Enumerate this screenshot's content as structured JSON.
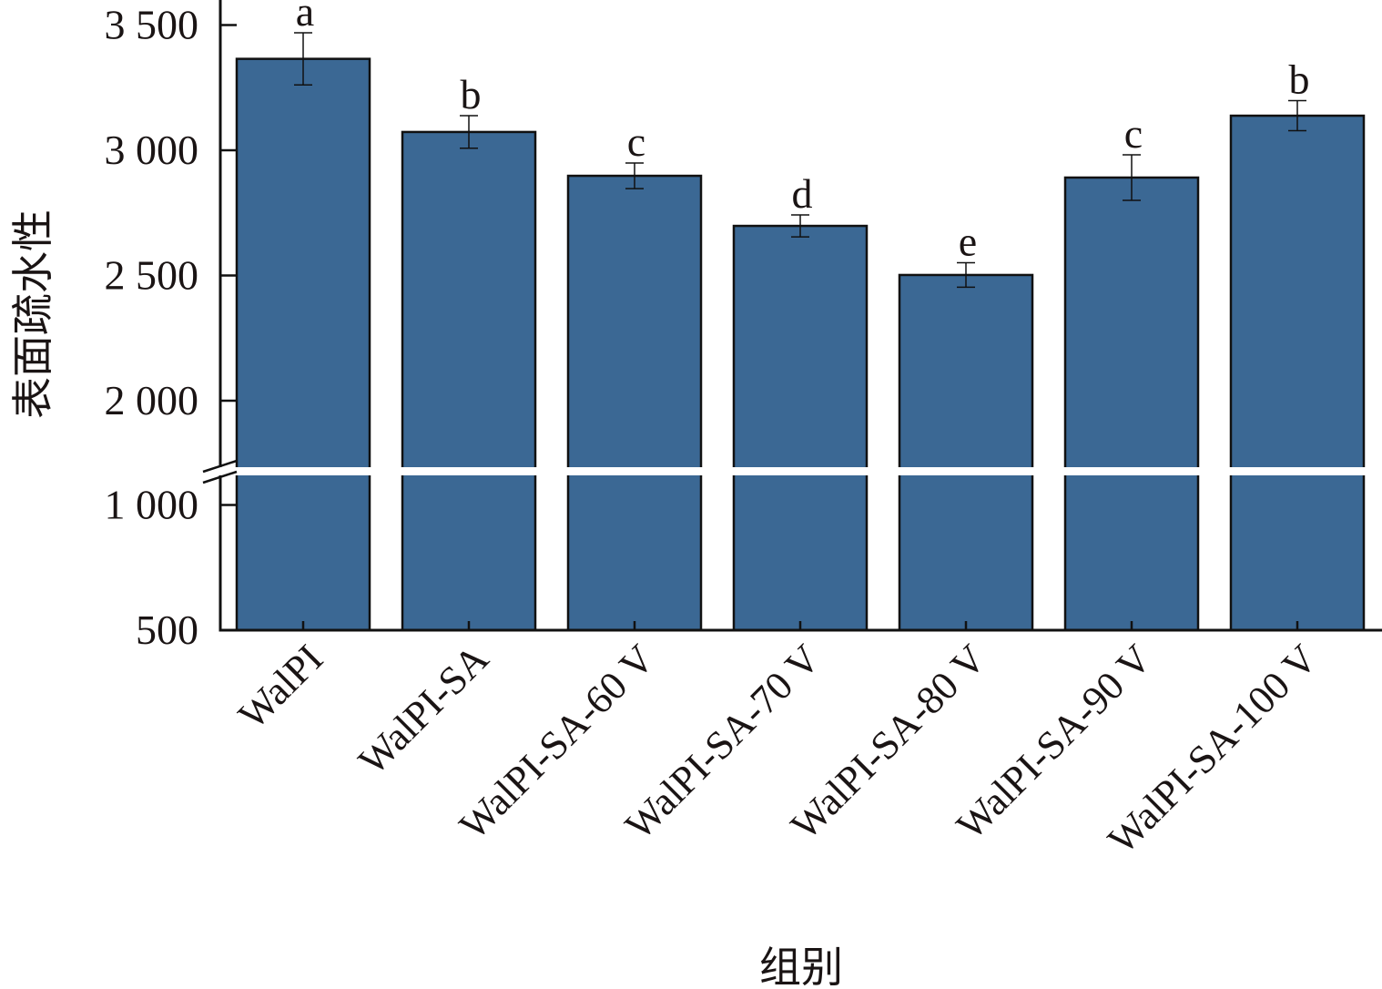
{
  "chart_data": {
    "type": "bar",
    "title": "",
    "xlabel": "组别",
    "ylabel": "表面疏水性",
    "categories": [
      "WalPI",
      "WalPI-SA",
      "WalPI-SA-60 V",
      "WalPI-SA-70 V",
      "WalPI-SA-80 V",
      "WalPI-SA-90 V",
      "WalPI-SA-100 V"
    ],
    "values": [
      3365,
      3073,
      2898,
      2698,
      2502,
      2891,
      3138
    ],
    "errors": [
      104,
      65,
      51,
      44,
      49,
      91,
      60
    ],
    "significance_letters": [
      "a",
      "b",
      "c",
      "d",
      "e",
      "c",
      "b"
    ],
    "y_axis_break": {
      "from": 1250,
      "to": 1750
    },
    "ylim": [
      500,
      3600
    ],
    "yticks": [
      500,
      1000,
      2000,
      2500,
      3000,
      3500
    ],
    "ytick_labels": [
      "500",
      "1 000",
      "2 000",
      "2 500",
      "3 000",
      "3 500"
    ],
    "grid": false,
    "legend": null,
    "bar_color": "#3b6894"
  }
}
